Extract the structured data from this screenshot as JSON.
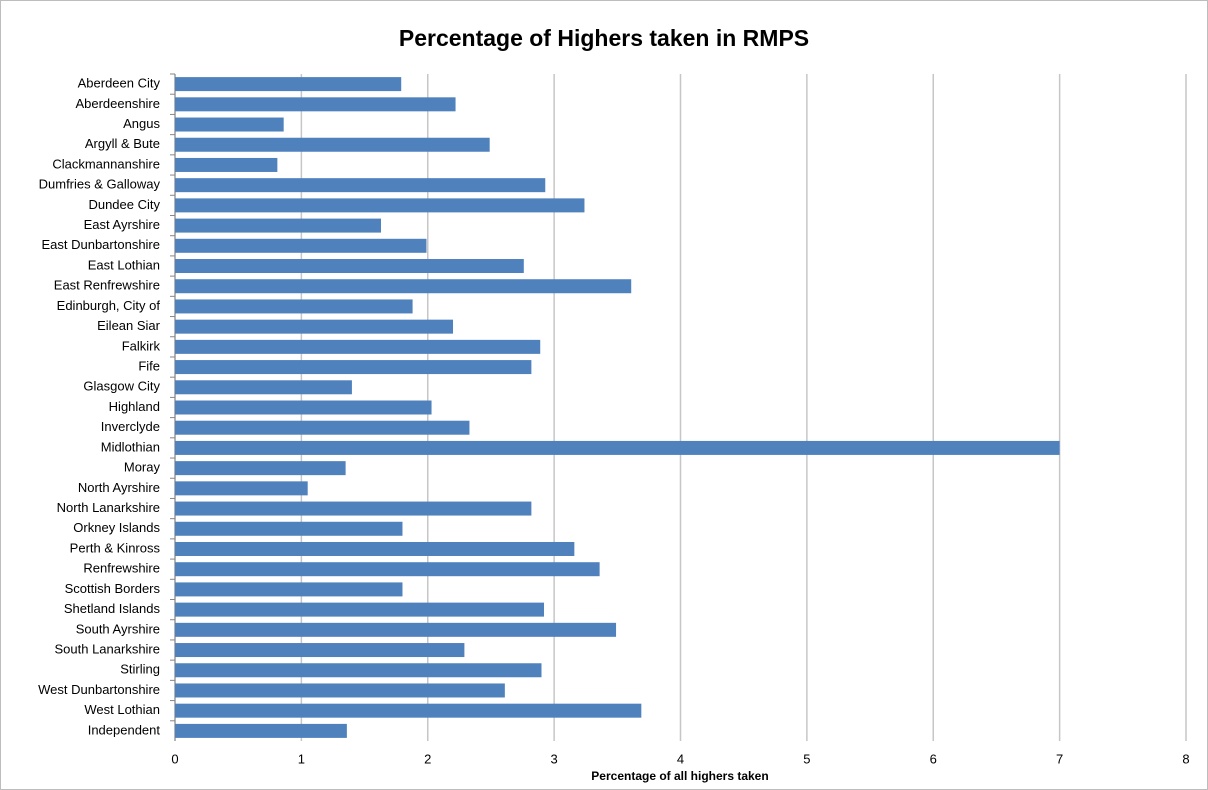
{
  "chart_data": {
    "type": "hbar",
    "title": "Percentage of Highers taken in RMPS",
    "x_label": "Percentage of all highers taken",
    "categories": [
      "Aberdeen City",
      "Aberdeenshire",
      "Angus",
      "Argyll & Bute",
      "Clackmannanshire",
      "Dumfries & Galloway",
      "Dundee City",
      "East Ayrshire",
      "East Dunbartonshire",
      "East Lothian",
      "East Renfrewshire",
      "Edinburgh, City of",
      "Eilean Siar",
      "Falkirk",
      "Fife",
      "Glasgow City",
      "Highland",
      "Inverclyde",
      "Midlothian",
      "Moray",
      "North Ayrshire",
      "North Lanarkshire",
      "Orkney Islands",
      "Perth & Kinross",
      "Renfrewshire",
      "Scottish Borders",
      "Shetland Islands",
      "South Ayrshire",
      "South Lanarkshire",
      "Stirling",
      "West Dunbartonshire",
      "West Lothian",
      "Independent"
    ],
    "values": [
      1.79,
      2.22,
      0.86,
      2.49,
      0.81,
      2.93,
      3.24,
      1.63,
      1.99,
      2.76,
      3.61,
      1.88,
      2.2,
      2.89,
      2.82,
      1.4,
      2.03,
      2.33,
      7.0,
      1.35,
      1.05,
      2.82,
      1.8,
      3.16,
      3.36,
      1.8,
      2.92,
      3.49,
      2.29,
      2.9,
      2.61,
      3.69,
      1.36
    ],
    "color": "#4f81bd",
    "xlim": [
      0,
      8
    ],
    "xticks": [
      0,
      1,
      2,
      3,
      4,
      5,
      6,
      7,
      8
    ],
    "grid": true
  }
}
